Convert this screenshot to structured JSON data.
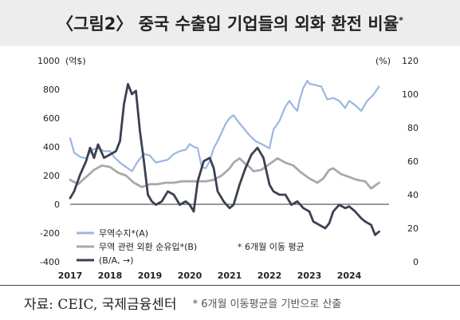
{
  "title": "〈그림2〉 중국 수출입 기업들의 외화 환전 비율",
  "title_mark": "*",
  "source": "자료: CEIC, 국제금융센터",
  "note": "* 6개월 이동평균을 기반으로 산출",
  "chart_data": {
    "type": "line",
    "left_axis": {
      "unit": "(억$)",
      "ticks": [
        "1000",
        "800",
        "600",
        "400",
        "200",
        "0",
        "-200",
        "-400"
      ],
      "range": [
        -400,
        1000
      ]
    },
    "right_axis": {
      "unit": "(%)",
      "ticks": [
        "120",
        "100",
        "80",
        "60",
        "40",
        "20",
        "0"
      ],
      "range": [
        0,
        120
      ]
    },
    "x_ticks": [
      "2017",
      "2018",
      "2019",
      "2020",
      "2021",
      "2022",
      "2023",
      "2024"
    ],
    "legend_note": "* 6개월 이동 평균",
    "series": [
      {
        "name": "무역수지*(A)",
        "axis": "left",
        "color": "#9bb7e0",
        "x": [
          2017.0,
          2017.1,
          2017.25,
          2017.4,
          2017.55,
          2017.7,
          2017.85,
          2018.0,
          2018.1,
          2018.25,
          2018.4,
          2018.55,
          2018.7,
          2018.85,
          2019.0,
          2019.15,
          2019.3,
          2019.45,
          2019.6,
          2019.75,
          2019.9,
          2020.0,
          2020.1,
          2020.2,
          2020.3,
          2020.4,
          2020.5,
          2020.6,
          2020.7,
          2020.8,
          2020.9,
          2021.0,
          2021.1,
          2021.2,
          2021.35,
          2021.5,
          2021.65,
          2021.8,
          2022.0,
          2022.1,
          2022.25,
          2022.4,
          2022.5,
          2022.6,
          2022.7,
          2022.75,
          2022.85,
          2022.95,
          2023.0,
          2023.15,
          2023.3,
          2023.45,
          2023.6,
          2023.75,
          2023.9,
          2024.0,
          2024.15,
          2024.3,
          2024.45,
          2024.6,
          2024.75
        ],
        "y": [
          460,
          360,
          330,
          320,
          380,
          390,
          370,
          370,
          330,
          290,
          260,
          230,
          300,
          350,
          340,
          290,
          300,
          310,
          350,
          370,
          380,
          420,
          400,
          390,
          260,
          250,
          300,
          390,
          440,
          500,
          560,
          600,
          620,
          580,
          530,
          480,
          440,
          420,
          390,
          520,
          580,
          680,
          720,
          680,
          650,
          720,
          810,
          860,
          840,
          830,
          820,
          730,
          740,
          720,
          670,
          720,
          690,
          650,
          720,
          760,
          820
        ]
      },
      {
        "name": "무역 관련 외환 순유입*(B)",
        "axis": "left",
        "color": "#a9a9a9",
        "x": [
          2017.0,
          2017.2,
          2017.4,
          2017.6,
          2017.8,
          2018.0,
          2018.2,
          2018.4,
          2018.6,
          2018.8,
          2019.0,
          2019.2,
          2019.4,
          2019.6,
          2019.8,
          2020.0,
          2020.2,
          2020.4,
          2020.6,
          2020.8,
          2021.0,
          2021.1,
          2021.25,
          2021.4,
          2021.5,
          2021.6,
          2021.8,
          2022.0,
          2022.2,
          2022.4,
          2022.6,
          2022.8,
          2023.0,
          2023.2,
          2023.35,
          2023.5,
          2023.6,
          2023.8,
          2024.0,
          2024.2,
          2024.4,
          2024.55,
          2024.75
        ],
        "y": [
          170,
          140,
          190,
          240,
          270,
          260,
          220,
          200,
          150,
          120,
          140,
          140,
          150,
          150,
          160,
          160,
          160,
          160,
          170,
          200,
          250,
          290,
          320,
          280,
          260,
          230,
          240,
          280,
          320,
          290,
          270,
          220,
          180,
          150,
          180,
          240,
          250,
          210,
          190,
          170,
          160,
          110,
          150
        ]
      },
      {
        "name": "(B/A, →)",
        "axis": "right",
        "color": "#3a4150",
        "x": [
          2017.0,
          2017.1,
          2017.25,
          2017.4,
          2017.5,
          2017.6,
          2017.7,
          2017.85,
          2018.0,
          2018.15,
          2018.25,
          2018.35,
          2018.45,
          2018.55,
          2018.65,
          2018.75,
          2018.85,
          2018.95,
          2019.05,
          2019.15,
          2019.3,
          2019.45,
          2019.6,
          2019.75,
          2019.9,
          2020.0,
          2020.1,
          2020.2,
          2020.35,
          2020.5,
          2020.6,
          2020.7,
          2020.85,
          2021.0,
          2021.1,
          2021.25,
          2021.4,
          2021.55,
          2021.7,
          2021.85,
          2022.0,
          2022.1,
          2022.25,
          2022.4,
          2022.55,
          2022.7,
          2022.85,
          2023.0,
          2023.1,
          2023.25,
          2023.4,
          2023.5,
          2023.6,
          2023.75,
          2023.9,
          2024.0,
          2024.15,
          2024.3,
          2024.4,
          2024.55,
          2024.65,
          2024.75
        ],
        "y": [
          38,
          42,
          52,
          60,
          68,
          62,
          70,
          62,
          64,
          66,
          72,
          94,
          106,
          100,
          102,
          78,
          60,
          40,
          36,
          34,
          36,
          42,
          40,
          34,
          36,
          34,
          30,
          48,
          60,
          62,
          56,
          42,
          36,
          32,
          34,
          46,
          56,
          64,
          68,
          62,
          46,
          42,
          40,
          40,
          34,
          36,
          32,
          30,
          24,
          22,
          20,
          23,
          30,
          34,
          32,
          33,
          30,
          26,
          24,
          22,
          16,
          18
        ]
      }
    ]
  }
}
